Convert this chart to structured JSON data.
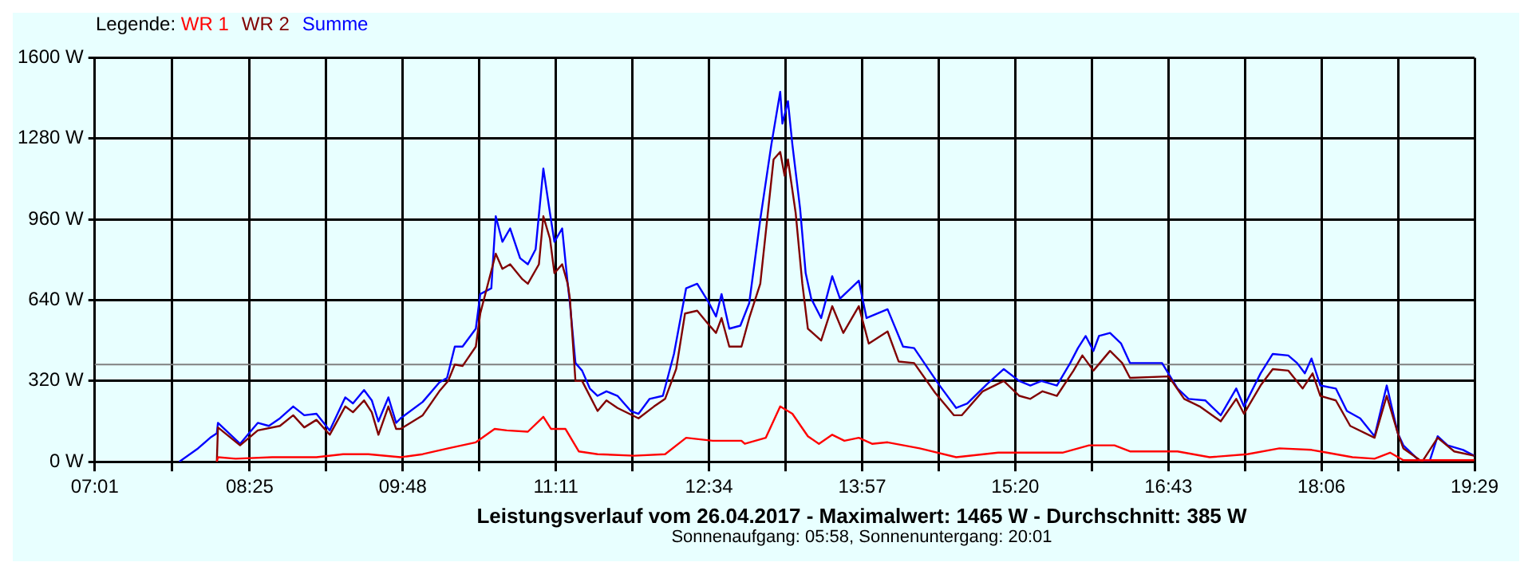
{
  "chart_data": {
    "type": "line",
    "xlabel": "Leistungsverlauf vom 26.04.2017 - Maximalwert: 1465 W - Durchschnitt: 385 W",
    "annotations": [
      "Sonnenaufgang: 05:58, Sonnenuntergang: 20:01"
    ],
    "legend_title": "Legende:",
    "legend": "top left",
    "grid": true,
    "marker": "none",
    "line_style": "solid",
    "xlim": [
      7.0167,
      19.4833
    ],
    "xticks": [
      {
        "value": 7.0167,
        "label": "07:01"
      },
      {
        "value": 7.7167,
        "label": null
      },
      {
        "value": 8.4167,
        "label": "08:25"
      },
      {
        "value": 9.1083,
        "label": null
      },
      {
        "value": 9.8,
        "label": "09:48"
      },
      {
        "value": 10.4917,
        "label": null
      },
      {
        "value": 11.1833,
        "label": "11:11"
      },
      {
        "value": 11.875,
        "label": null
      },
      {
        "value": 12.5667,
        "label": "12:34"
      },
      {
        "value": 13.2583,
        "label": null
      },
      {
        "value": 13.95,
        "label": "13:57"
      },
      {
        "value": 14.6417,
        "label": null
      },
      {
        "value": 15.3333,
        "label": "15:20"
      },
      {
        "value": 16.025,
        "label": null
      },
      {
        "value": 16.7167,
        "label": "16:43"
      },
      {
        "value": 17.4083,
        "label": null
      },
      {
        "value": 18.1,
        "label": "18:06"
      },
      {
        "value": 18.7917,
        "label": null
      },
      {
        "value": 19.4833,
        "label": "19:29"
      }
    ],
    "ylim": [
      0,
      1600
    ],
    "yticks": [
      {
        "value": 0,
        "label": "0 W"
      },
      {
        "value": 320,
        "label": "320 W"
      },
      {
        "value": 640,
        "label": "640 W"
      },
      {
        "value": 960,
        "label": "960 W"
      },
      {
        "value": 1280,
        "label": "1280 W"
      },
      {
        "value": 1600,
        "label": "1600 W"
      }
    ],
    "ref_lines": [
      {
        "axis": "y",
        "value": 385,
        "color": "#808080"
      }
    ],
    "series": [
      {
        "name": "WR 1",
        "color": "#ff0000",
        "x": [
          8.12,
          8.13,
          8.29,
          8.62,
          9.02,
          9.26,
          9.49,
          9.78,
          9.98,
          10.21,
          10.46,
          10.63,
          10.74,
          10.93,
          11.07,
          11.14,
          11.27,
          11.39,
          11.56,
          11.89,
          12.17,
          12.36,
          12.6,
          12.86,
          12.89,
          13.08,
          13.21,
          13.32,
          13.46,
          13.56,
          13.68,
          13.79,
          13.92,
          14.04,
          14.18,
          14.47,
          14.8,
          15.18,
          15.76,
          16.0,
          16.23,
          16.37,
          16.8,
          17.09,
          17.43,
          17.72,
          18.01,
          18.15,
          18.38,
          18.58,
          18.72,
          18.84,
          19.48
        ],
        "values": [
          0,
          18,
          12,
          18,
          18,
          30,
          30,
          18,
          30,
          53,
          77,
          130,
          124,
          119,
          178,
          130,
          130,
          41,
          30,
          24,
          30,
          95,
          83,
          83,
          71,
          95,
          219,
          190,
          101,
          71,
          107,
          83,
          95,
          71,
          77,
          53,
          18,
          36,
          36,
          65,
          65,
          41,
          41,
          18,
          30,
          53,
          47,
          36,
          18,
          12,
          36,
          6,
          6
        ]
      },
      {
        "name": "WR 2",
        "color": "#800000",
        "x": [
          8.12,
          8.13,
          8.33,
          8.49,
          8.69,
          8.81,
          8.91,
          9.02,
          9.14,
          9.28,
          9.35,
          9.45,
          9.52,
          9.58,
          9.67,
          9.74,
          9.78,
          9.98,
          10.13,
          10.21,
          10.27,
          10.34,
          10.46,
          10.5,
          10.64,
          10.7,
          10.77,
          10.88,
          10.93,
          11.03,
          11.07,
          11.13,
          11.17,
          11.24,
          11.29,
          11.31,
          11.36,
          11.42,
          11.56,
          11.64,
          11.74,
          11.93,
          12.07,
          12.17,
          12.27,
          12.35,
          12.46,
          12.56,
          12.63,
          12.68,
          12.75,
          12.86,
          12.93,
          13.03,
          13.15,
          13.21,
          13.25,
          13.28,
          13.35,
          13.41,
          13.46,
          13.58,
          13.68,
          13.78,
          13.92,
          14.01,
          14.18,
          14.28,
          14.42,
          14.61,
          14.78,
          14.85,
          15.04,
          15.23,
          15.37,
          15.47,
          15.58,
          15.71,
          15.86,
          15.94,
          16.04,
          16.19,
          16.3,
          16.37,
          16.72,
          16.86,
          17.0,
          17.19,
          17.33,
          17.4,
          17.55,
          17.66,
          17.8,
          17.93,
          18.02,
          18.09,
          18.23,
          18.36,
          18.58,
          18.69,
          18.79,
          18.84,
          19.01,
          19.15,
          19.3,
          19.48
        ],
        "values": [
          0,
          136,
          65,
          124,
          142,
          184,
          136,
          166,
          107,
          219,
          196,
          243,
          196,
          107,
          219,
          130,
          130,
          184,
          279,
          320,
          385,
          379,
          456,
          587,
          824,
          764,
          782,
          723,
          705,
          782,
          972,
          883,
          747,
          782,
          705,
          646,
          320,
          320,
          201,
          243,
          213,
          172,
          219,
          249,
          367,
          587,
          598,
          545,
          510,
          569,
          456,
          456,
          569,
          705,
          1197,
          1227,
          1132,
          1197,
          984,
          705,
          527,
          480,
          616,
          510,
          616,
          468,
          516,
          397,
          391,
          273,
          184,
          184,
          279,
          320,
          261,
          249,
          279,
          261,
          361,
          421,
          361,
          439,
          391,
          332,
          338,
          249,
          219,
          160,
          249,
          190,
          302,
          367,
          361,
          290,
          350,
          261,
          243,
          142,
          95,
          261,
          113,
          53,
          0,
          95,
          41,
          24
        ]
      },
      {
        "name": "Summe",
        "color": "#0000ff",
        "x": [
          7.78,
          7.95,
          8.06,
          8.12,
          8.13,
          8.33,
          8.41,
          8.49,
          8.59,
          8.69,
          8.81,
          8.91,
          9.02,
          9.14,
          9.28,
          9.35,
          9.45,
          9.52,
          9.58,
          9.67,
          9.74,
          9.78,
          9.98,
          10.13,
          10.2,
          10.27,
          10.34,
          10.46,
          10.5,
          10.6,
          10.64,
          10.7,
          10.77,
          10.86,
          10.93,
          11.0,
          11.07,
          11.13,
          11.17,
          11.24,
          11.29,
          11.31,
          11.36,
          11.42,
          11.49,
          11.56,
          11.64,
          11.74,
          11.86,
          11.93,
          12.03,
          12.15,
          12.25,
          12.36,
          12.46,
          12.56,
          12.63,
          12.68,
          12.75,
          12.85,
          12.93,
          13.03,
          13.13,
          13.21,
          13.23,
          13.28,
          13.32,
          13.39,
          13.44,
          13.49,
          13.58,
          13.68,
          13.75,
          13.92,
          13.99,
          14.18,
          14.32,
          14.42,
          14.64,
          14.8,
          14.9,
          15.08,
          15.23,
          15.37,
          15.47,
          15.57,
          15.71,
          15.83,
          15.9,
          15.97,
          16.04,
          16.09,
          16.19,
          16.29,
          16.37,
          16.66,
          16.8,
          16.9,
          17.05,
          17.19,
          17.33,
          17.4,
          17.55,
          17.66,
          17.8,
          17.88,
          17.95,
          18.01,
          18.09,
          18.23,
          18.33,
          18.45,
          18.58,
          18.69,
          18.79,
          18.84,
          18.98,
          19.08,
          19.15,
          19.24,
          19.38,
          19.48
        ],
        "values": [
          0,
          53,
          95,
          113,
          154,
          71,
          113,
          154,
          142,
          172,
          219,
          184,
          190,
          124,
          255,
          231,
          284,
          243,
          160,
          255,
          154,
          172,
          237,
          314,
          332,
          456,
          456,
          527,
          664,
          687,
          972,
          871,
          924,
          806,
          782,
          841,
          1161,
          984,
          871,
          924,
          705,
          628,
          391,
          361,
          290,
          261,
          279,
          261,
          201,
          190,
          249,
          261,
          427,
          687,
          705,
          634,
          575,
          664,
          527,
          539,
          628,
          960,
          1256,
          1465,
          1339,
          1428,
          1256,
          1001,
          747,
          646,
          569,
          735,
          646,
          717,
          569,
          604,
          456,
          450,
          308,
          213,
          231,
          308,
          367,
          320,
          302,
          320,
          302,
          391,
          450,
          498,
          439,
          498,
          510,
          468,
          391,
          391,
          290,
          249,
          243,
          184,
          290,
          219,
          350,
          427,
          421,
          391,
          350,
          409,
          302,
          290,
          201,
          172,
          101,
          302,
          113,
          65,
          6,
          6,
          101,
          65,
          47,
          24
        ]
      }
    ]
  }
}
